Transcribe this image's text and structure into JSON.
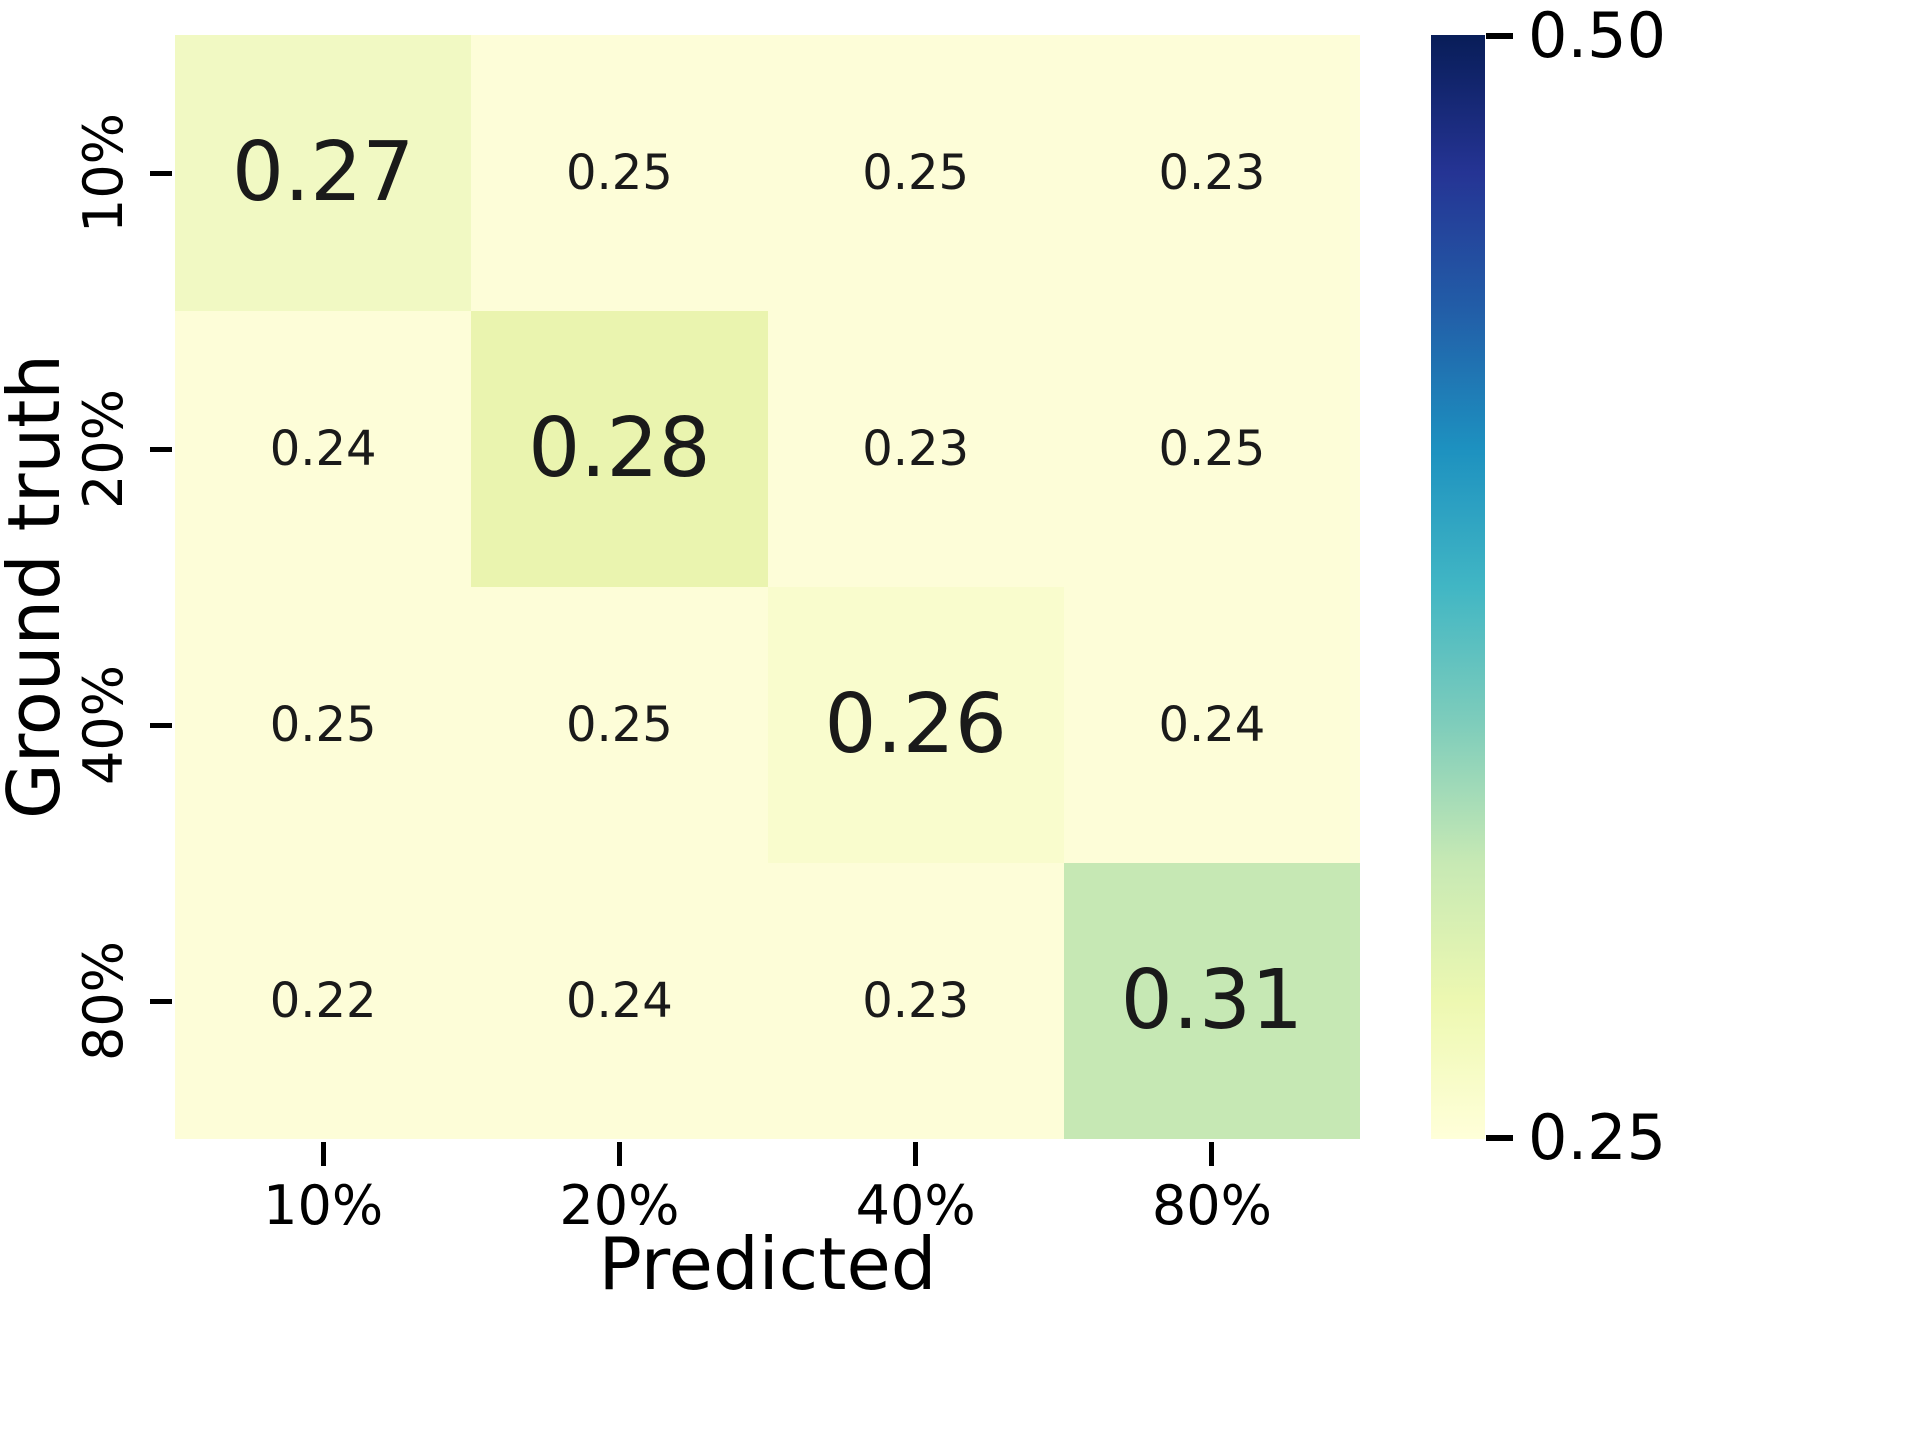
{
  "chart_data": {
    "type": "heatmap",
    "xlabel": "Predicted",
    "ylabel": "Ground truth",
    "x_categories": [
      "10%",
      "20%",
      "40%",
      "80%"
    ],
    "y_categories": [
      "10%",
      "20%",
      "40%",
      "80%"
    ],
    "values": [
      [
        0.27,
        0.25,
        0.25,
        0.23
      ],
      [
        0.24,
        0.28,
        0.23,
        0.25
      ],
      [
        0.25,
        0.25,
        0.26,
        0.24
      ],
      [
        0.22,
        0.24,
        0.23,
        0.31
      ]
    ],
    "cell_labels": [
      [
        "0.27",
        "0.25",
        "0.25",
        "0.23"
      ],
      [
        "0.24",
        "0.28",
        "0.23",
        "0.25"
      ],
      [
        "0.25",
        "0.25",
        "0.26",
        "0.24"
      ],
      [
        "0.22",
        "0.24",
        "0.23",
        "0.31"
      ]
    ],
    "cell_colors": [
      [
        "#f1f9c3",
        "#fdfdd8",
        "#fdfdd8",
        "#fdfdd8"
      ],
      [
        "#fdfdd8",
        "#eaf4af",
        "#fdfdd8",
        "#fdfdd8"
      ],
      [
        "#fdfdd8",
        "#fdfdd8",
        "#f9fccd",
        "#fdfdd8"
      ],
      [
        "#fdfdd8",
        "#fdfdd8",
        "#fdfdd8",
        "#c6e8b4"
      ]
    ],
    "diagonal_emphasized": true,
    "annotation_text_color": "#1a1a1a",
    "grid": false,
    "legend_position": "right-colorbar",
    "colorbar": {
      "vmin": 0.25,
      "vmax": 0.5,
      "min_label": "0.25",
      "max_label": "0.50",
      "colormap": "YlGnBu",
      "gradient_stops_bottom_to_top": [
        "#ffffd9",
        "#edf8b1",
        "#c7e9b4",
        "#7fcdbb",
        "#41b6c4",
        "#1d91c0",
        "#225ea8",
        "#253494",
        "#081d58"
      ]
    }
  }
}
